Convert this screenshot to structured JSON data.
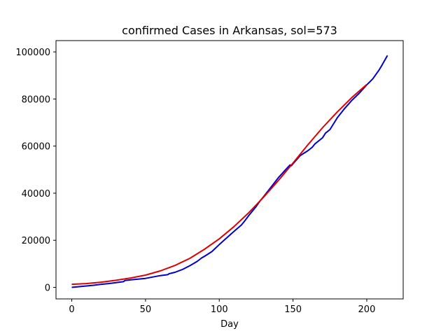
{
  "chart_data": {
    "type": "line",
    "title": "confirmed Cases in Arkansas, sol=573",
    "xlabel": "Day",
    "ylabel": "",
    "xlim": [
      -10.7,
      224.7
    ],
    "ylim": [
      -4900,
      104800
    ],
    "xticks": [
      0,
      50,
      100,
      150,
      200
    ],
    "yticks": [
      0,
      20000,
      40000,
      60000,
      80000,
      100000
    ],
    "grid": false,
    "series": [
      {
        "color": "#0000cc",
        "x": [
          0,
          5,
          10,
          15,
          20,
          25,
          30,
          35,
          36,
          40,
          45,
          50,
          55,
          60,
          65,
          66,
          70,
          75,
          80,
          85,
          88,
          90,
          95,
          100,
          105,
          110,
          115,
          117,
          120,
          125,
          128,
          130,
          135,
          140,
          145,
          148,
          149,
          150,
          155,
          160,
          163,
          165,
          170,
          172,
          175,
          178,
          180,
          185,
          190,
          195,
          200,
          204,
          208,
          210,
          214
        ],
        "y": [
          0,
          300,
          600,
          900,
          1300,
          1600,
          2000,
          2400,
          2900,
          3200,
          3500,
          3800,
          4400,
          5000,
          5400,
          5800,
          6400,
          7600,
          9200,
          11000,
          12500,
          13200,
          15200,
          18200,
          21000,
          23800,
          26500,
          28000,
          30500,
          34300,
          37000,
          38500,
          42500,
          46500,
          50000,
          52000,
          51700,
          52500,
          56000,
          58000,
          59500,
          61000,
          63500,
          65500,
          67000,
          70000,
          72000,
          76000,
          79500,
          82500,
          86000,
          88500,
          92000,
          94000,
          98500
        ]
      },
      {
        "color": "#dd0000",
        "x": [
          0,
          10,
          20,
          30,
          40,
          50,
          60,
          70,
          80,
          90,
          100,
          110,
          120,
          130,
          140,
          150,
          160,
          170,
          180,
          190,
          200
        ],
        "y": [
          1300,
          1600,
          2200,
          3000,
          4000,
          5200,
          7000,
          9300,
          12300,
          16200,
          20600,
          25800,
          31700,
          38300,
          45300,
          52800,
          60500,
          67800,
          74500,
          80700,
          86200
        ]
      }
    ]
  }
}
